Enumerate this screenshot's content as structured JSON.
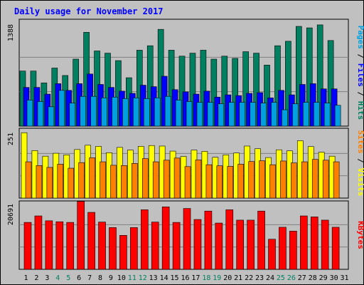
{
  "chart_data": {
    "type": "bar",
    "title": "Daily usage for November 2017",
    "x": [
      "1",
      "2",
      "3",
      "4",
      "5",
      "6",
      "7",
      "8",
      "9",
      "10",
      "11",
      "12",
      "13",
      "14",
      "15",
      "16",
      "17",
      "18",
      "19",
      "20",
      "21",
      "22",
      "23",
      "24",
      "25",
      "26",
      "27",
      "28",
      "29",
      "30",
      "31"
    ],
    "weekend_days": [
      4,
      5,
      11,
      12,
      18,
      19,
      25,
      26
    ],
    "panels": [
      {
        "id": "hits",
        "ymax_label": "1388",
        "ymax": 1388,
        "legend": [
          {
            "text": "Pages",
            "color": "#00a0e0"
          },
          {
            "text": "Files",
            "color": "#0000ff"
          },
          {
            "text": "Hits",
            "color": "#008060"
          }
        ],
        "series": [
          {
            "name": "Hits",
            "color": "#008060",
            "values": [
              740,
              740,
              580,
              780,
              680,
              900,
              1260,
              1010,
              980,
              880,
              650,
              1020,
              1080,
              1300,
              1020,
              940,
              980,
              1020,
              900,
              940,
              910,
              1000,
              980,
              820,
              1080,
              1140,
              1340,
              1320,
              1360,
              1150,
              null
            ]
          },
          {
            "name": "Files",
            "color": "#0000ff",
            "values": [
              520,
              520,
              430,
              570,
              480,
              570,
              700,
              560,
              520,
              470,
              440,
              550,
              530,
              670,
              490,
              460,
              430,
              470,
              390,
              420,
              410,
              440,
              450,
              380,
              480,
              420,
              560,
              570,
              500,
              500,
              null
            ]
          },
          {
            "name": "Pages",
            "color": "#00a0e0",
            "values": [
              350,
              330,
              260,
              480,
              310,
              400,
              400,
              380,
              390,
              370,
              380,
              370,
              380,
              400,
              350,
              330,
              320,
              320,
              300,
              320,
              320,
              320,
              310,
              320,
              220,
              300,
              320,
              320,
              310,
              280,
              null
            ]
          }
        ]
      },
      {
        "id": "visits",
        "ymax_label": "251",
        "ymax": 251,
        "legend": [
          {
            "text": "Sites",
            "color": "#ff8000"
          },
          {
            "text": "Visits",
            "color": "#ffff00"
          }
        ],
        "series": [
          {
            "name": "Visits",
            "color": "#ffff00",
            "values": [
              245,
              178,
              157,
              168,
              162,
              182,
              198,
              194,
              170,
              190,
              180,
              194,
              197,
              195,
              176,
              156,
              180,
              175,
              153,
              162,
              169,
              195,
              185,
              152,
              181,
              177,
              215,
              193,
              172,
              157,
              null
            ]
          },
          {
            "name": "Sites",
            "color": "#ff8000",
            "values": [
              136,
              122,
              115,
              127,
              112,
              133,
              151,
              136,
              123,
              122,
              130,
              148,
              136,
              142,
              150,
              118,
              143,
              125,
              121,
              119,
              127,
              137,
              140,
              125,
              139,
              132,
              136,
              145,
              142,
              136,
              null
            ]
          }
        ]
      },
      {
        "id": "kbytes",
        "ymax_label": "20691",
        "ymax": 20691,
        "legend": [
          {
            "text": "KBytes",
            "color": "#ff0000"
          }
        ],
        "series": [
          {
            "name": "KBytes",
            "color": "#ff0000",
            "values": [
              14500,
              16500,
              15000,
              14700,
              14500,
              21000,
              17600,
              14600,
              12900,
              10500,
              12900,
              18400,
              14600,
              19300,
              14500,
              18800,
              15400,
              18000,
              14300,
              18400,
              15200,
              15200,
              18000,
              9300,
              13000,
              11800,
              16500,
              16200,
              15200,
              13000,
              null
            ]
          }
        ]
      }
    ]
  }
}
